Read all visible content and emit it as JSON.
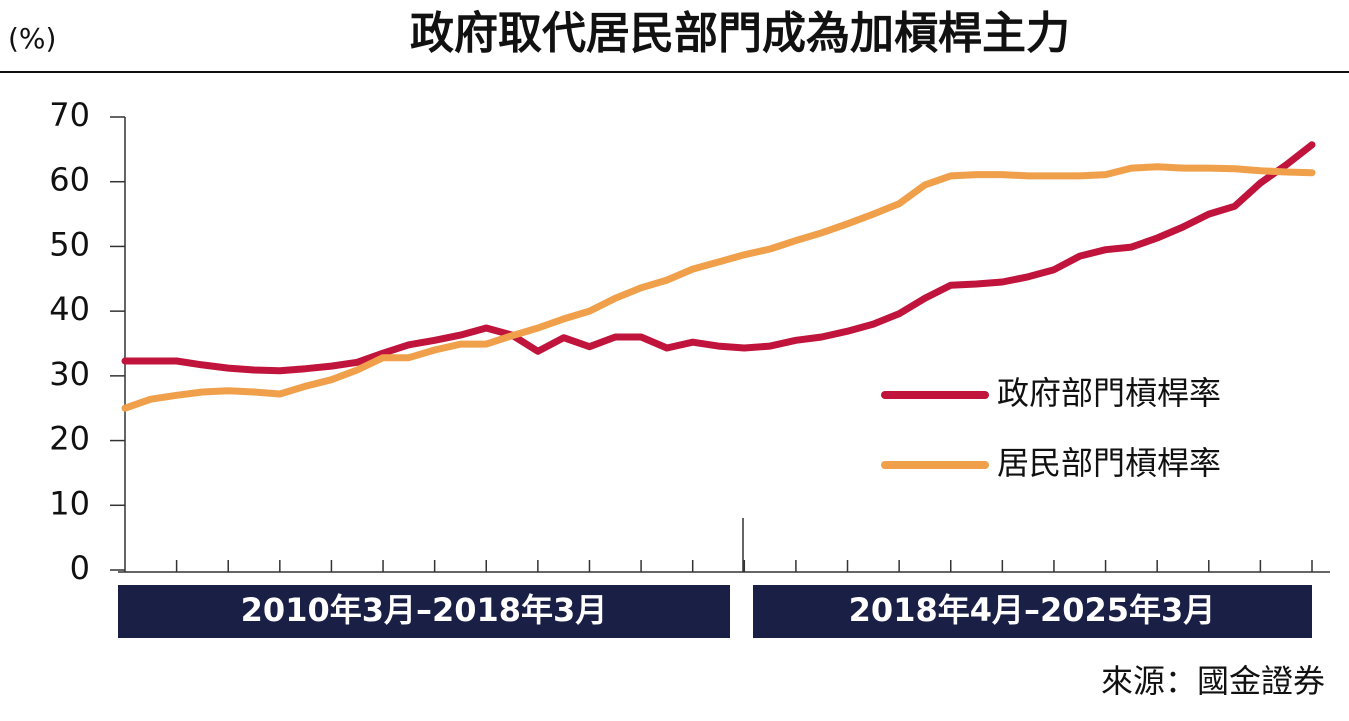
{
  "chart_data": {
    "type": "line",
    "title": "政府取代居民部門成為加槓桿主力",
    "y_label": "(%)",
    "source": "來源：國金證券",
    "periods": [
      "2010年3月–2018年3月",
      "2018年4月–2025年3月"
    ],
    "categories": [
      null,
      null,
      null,
      null,
      null,
      null,
      null,
      null,
      null,
      null,
      null,
      null,
      null,
      null,
      null,
      null,
      null,
      null,
      null,
      null,
      null,
      null,
      null,
      null,
      null,
      null,
      null,
      null,
      null,
      null,
      null,
      null,
      null,
      null,
      null,
      null,
      null,
      null,
      null,
      null,
      null,
      null,
      null,
      null,
      null,
      null,
      null
    ],
    "series": [
      {
        "name": "政府部門槓桿率",
        "color": "#c0143c",
        "values": [
          32.3,
          32.3,
          32.3,
          31.7,
          31.2,
          30.9,
          30.8,
          31.1,
          31.5,
          32.1,
          33.5,
          34.8,
          35.5,
          36.3,
          37.4,
          36.3,
          33.8,
          35.9,
          34.5,
          36.0,
          36.0,
          34.3,
          35.2,
          34.6,
          34.3,
          34.6,
          35.5,
          36.0,
          36.9,
          38.0,
          39.6,
          42.0,
          44.0,
          44.2,
          44.5,
          45.3,
          46.4,
          48.5,
          49.5,
          49.9,
          51.3,
          53.0,
          55.0,
          56.2,
          59.8,
          62.6,
          65.7
        ]
      },
      {
        "name": "居民部門槓桿率",
        "color": "#f0a04b",
        "values": [
          25.0,
          26.4,
          27.0,
          27.5,
          27.7,
          27.5,
          27.2,
          28.4,
          29.4,
          30.9,
          32.8,
          32.8,
          34.0,
          34.9,
          34.9,
          36.2,
          37.4,
          38.8,
          40.0,
          42.0,
          43.6,
          44.8,
          46.5,
          47.6,
          48.7,
          49.6,
          50.9,
          52.1,
          53.5,
          55.0,
          56.6,
          59.5,
          60.9,
          61.1,
          61.1,
          60.9,
          60.9,
          60.9,
          61.1,
          62.1,
          62.3,
          62.1,
          62.1,
          62.0,
          61.7,
          61.5,
          61.4
        ]
      }
    ],
    "ylim": [
      0,
      70
    ],
    "yticks": [
      0,
      10,
      20,
      30,
      40,
      50,
      60,
      70
    ],
    "legend": "right"
  }
}
